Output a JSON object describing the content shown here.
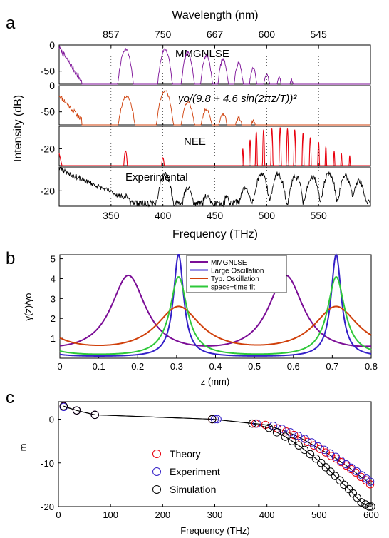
{
  "panel_letters": [
    "a",
    "b",
    "c"
  ],
  "chart_data": [
    {
      "id": "a",
      "type": "line",
      "xlabel_top": "Wavelength (nm)",
      "top_ticks": [
        "857",
        "750",
        "667",
        "600",
        "545"
      ],
      "top_tick_freqs": [
        350,
        400,
        450,
        500,
        550
      ],
      "ylabel": "Intensity (dB)",
      "xlabel": "Frequency (THz)",
      "xlim": [
        300,
        600
      ],
      "xticks": [
        350,
        400,
        450,
        500,
        550
      ],
      "grid": "dotted",
      "subplots": [
        {
          "name": "mmgnlse",
          "color": "#7b0d96",
          "label": "MMGNLSE",
          "ylim": [
            -75,
            0
          ],
          "yticks": [
            0,
            -50
          ],
          "peaks_x": [
            364,
            402,
            424,
            442,
            458,
            473,
            487,
            500,
            512,
            524
          ],
          "peaks_y": [
            -8,
            -8,
            -15,
            -20,
            -28,
            -35,
            -45,
            -55,
            -62,
            -68
          ]
        },
        {
          "name": "oscillation",
          "color": "#d0400b",
          "label": "γo/(9.8 + 4.6 sin(2πz/T))²",
          "ylim": [
            -75,
            0
          ],
          "yticks": [
            0,
            -50
          ],
          "peaks_x": [
            365,
            402,
            424,
            442,
            458,
            473,
            487
          ],
          "peaks_y": [
            -20,
            -10,
            -32,
            -45,
            -55,
            -62,
            -68
          ]
        },
        {
          "name": "nee",
          "color": "#e8000e",
          "label": "NEE",
          "ylim": [
            -35,
            0
          ],
          "yticks": [
            -20
          ],
          "peaks_x": [
            364,
            400,
            477,
            484,
            490,
            497,
            505,
            513,
            520,
            527,
            535,
            542,
            550,
            557,
            565,
            572,
            580
          ],
          "peaks_y": [
            -22,
            -28,
            -20,
            -12,
            -5,
            -3,
            -2,
            -1,
            -2,
            -3,
            -6,
            -10,
            -14,
            -18,
            -22,
            -24,
            -26
          ]
        },
        {
          "name": "experimental",
          "color": "#000000",
          "label": "Experimental",
          "ylim": [
            -33,
            0
          ],
          "yticks": [
            -20
          ],
          "peaks_x": [
            301,
            365,
            402,
            424,
            442,
            461,
            479,
            495,
            511,
            528,
            544,
            560,
            576,
            589
          ],
          "peaks_y": [
            -2,
            -25,
            -6,
            -18,
            -24,
            -26,
            -18,
            -6,
            -6,
            -8,
            -8,
            -6,
            -8,
            -12
          ]
        }
      ]
    },
    {
      "id": "b",
      "type": "line",
      "xlabel": "z (mm)",
      "ylabel": "γ(z)/γo",
      "xlim": [
        0,
        0.8
      ],
      "ylim": [
        0,
        5.2
      ],
      "xticks": [
        0,
        0.1,
        0.2,
        0.3,
        0.4,
        0.5,
        0.6,
        0.7,
        0.8
      ],
      "yticks": [
        1,
        2,
        3,
        4,
        5
      ],
      "legend_position": "top-right",
      "period_mm": 0.405,
      "series": [
        {
          "name": "MMGNLSE",
          "color": "#7b0d96",
          "peak_z": 0.176,
          "peak": 4.0,
          "base": 0.0,
          "width": 0.055
        },
        {
          "name": "Large Oscillation",
          "color": "#3420c8",
          "peak_z": 0.305,
          "peak": 5.2,
          "base": 0.04,
          "width": 0.016
        },
        {
          "name": "Typ. Oscillation",
          "color": "#d0400b",
          "peak_z": 0.305,
          "peak": 2.45,
          "base": 0.1,
          "width": 0.07
        },
        {
          "name": "space+time fit",
          "color": "#2ec83a",
          "peak_z": 0.305,
          "peak": 4.05,
          "base": 0.05,
          "width": 0.027
        }
      ]
    },
    {
      "id": "c",
      "type": "scatter",
      "xlabel": "Frequency (THz)",
      "ylabel": "m",
      "xlim": [
        0,
        600
      ],
      "ylim": [
        -20,
        4
      ],
      "xticks": [
        0,
        100,
        200,
        300,
        400,
        500,
        600
      ],
      "yticks": [
        0,
        -10,
        -20
      ],
      "legend_position": "bottom-center",
      "curve_color": "#000000",
      "series": [
        {
          "name": "Theory",
          "color": "#e8000e",
          "x": [
            10,
            35,
            70,
            295,
            378,
            397,
            420,
            437,
            452,
            466,
            478,
            490,
            502,
            513,
            523,
            533,
            542,
            552,
            561,
            570,
            580,
            590,
            598
          ],
          "y": [
            2.9,
            2.0,
            1.0,
            0.0,
            -1.0,
            -1.3,
            -2.1,
            -2.8,
            -3.6,
            -4.4,
            -5.2,
            -6.0,
            -6.8,
            -7.6,
            -8.4,
            -9.0,
            -9.8,
            -10.6,
            -11.4,
            -12.2,
            -13.2,
            -14.0,
            -14.9
          ]
        },
        {
          "name": "Experiment",
          "color": "#3420c8",
          "x": [
            10,
            35,
            70,
            300,
            305,
            381,
            412,
            429,
            445,
            460,
            473,
            486,
            498,
            510,
            521,
            532,
            542,
            552,
            562,
            572,
            582,
            591,
            598
          ],
          "y": [
            2.8,
            2.0,
            1.0,
            0.0,
            0.0,
            -1.0,
            -1.5,
            -2.2,
            -3.0,
            -3.8,
            -4.5,
            -5.3,
            -6.2,
            -7.0,
            -7.8,
            -8.6,
            -9.5,
            -10.3,
            -11.1,
            -11.9,
            -12.8,
            -13.6,
            -14.3
          ]
        },
        {
          "name": "Simulation",
          "color": "#000000",
          "x": [
            10,
            35,
            70,
            295,
            372,
            404,
            419,
            435,
            448,
            461,
            472,
            483,
            494,
            504,
            513,
            522,
            531,
            540,
            548,
            557,
            565,
            573,
            581,
            589,
            596,
            600
          ],
          "y": [
            3.0,
            2.0,
            1.0,
            0.0,
            -1.0,
            -2.0,
            -3.0,
            -4.0,
            -5.0,
            -6.0,
            -7.0,
            -8.0,
            -9.0,
            -10.0,
            -11.0,
            -12.0,
            -13.0,
            -14.0,
            -15.0,
            -16.0,
            -17.0,
            -18.0,
            -19.0,
            -19.5,
            -20.0,
            -20.0
          ]
        }
      ]
    }
  ]
}
